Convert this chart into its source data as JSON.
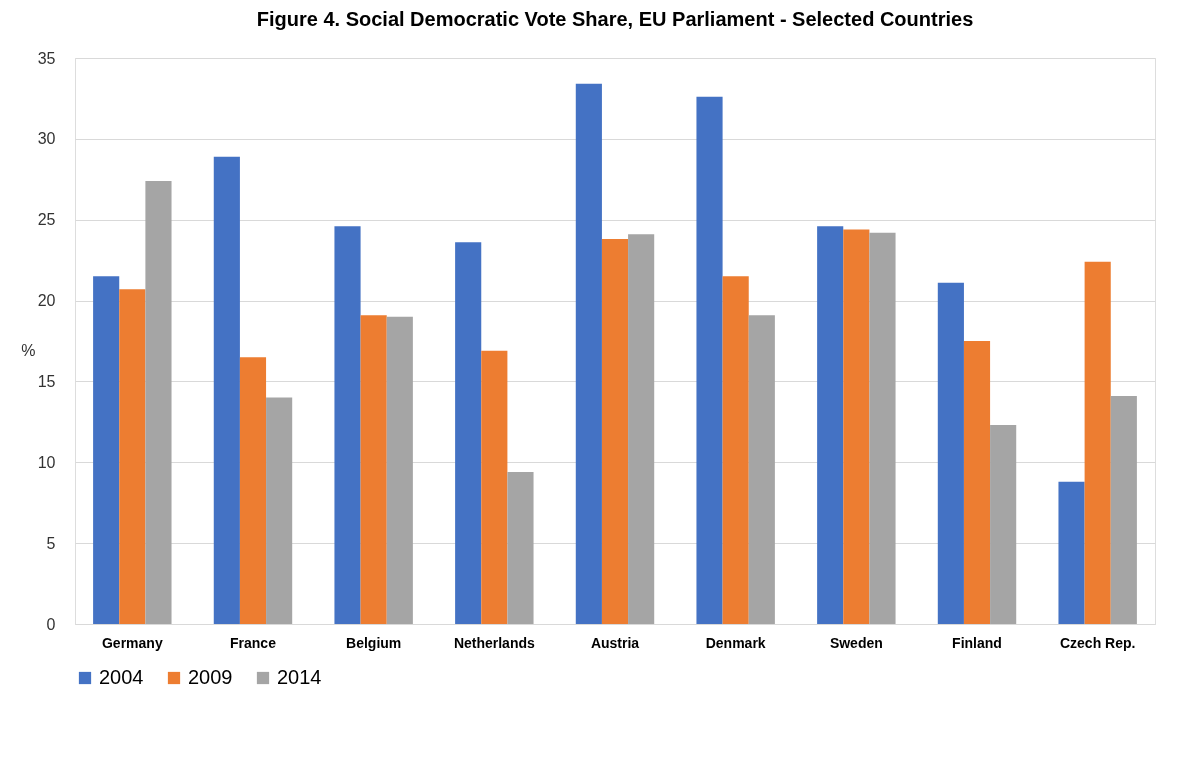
{
  "chart_data": {
    "type": "bar",
    "title": "Figure 4. Social Democratic Vote Share, EU Parliament  - Selected Countries",
    "ylabel": "%",
    "categories": [
      "Germany",
      "France",
      "Belgium",
      "Netherlands",
      "Austria",
      "Denmark",
      "Sweden",
      "Finland",
      "Czech Rep."
    ],
    "series": [
      {
        "name": "2004",
        "color": "#4472c4",
        "values": [
          21.5,
          28.9,
          24.6,
          23.6,
          33.4,
          32.6,
          24.6,
          21.1,
          8.8
        ]
      },
      {
        "name": "2009",
        "color": "#ed7d31",
        "values": [
          20.7,
          16.5,
          19.1,
          16.9,
          23.8,
          21.5,
          24.4,
          17.5,
          22.4
        ]
      },
      {
        "name": "2014",
        "color": "#a5a5a5",
        "values": [
          27.4,
          14.0,
          19.0,
          9.4,
          24.1,
          19.1,
          24.2,
          12.3,
          14.1
        ]
      }
    ],
    "ylim": [
      0,
      35
    ],
    "yticks": [
      0,
      5,
      10,
      15,
      20,
      25,
      30,
      35
    ],
    "grid": "y",
    "legend": "bottom"
  }
}
